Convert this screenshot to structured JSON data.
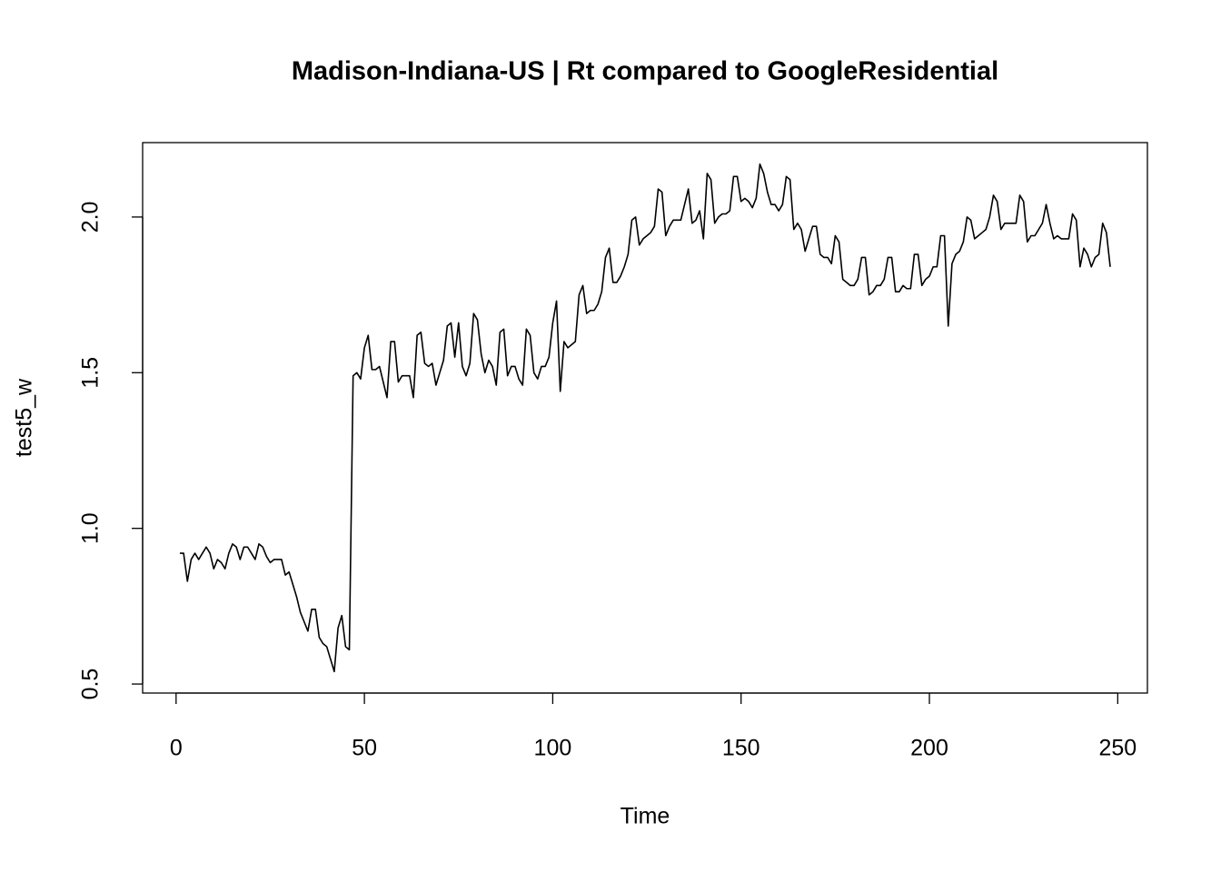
{
  "chart_data": {
    "type": "line",
    "title": "Madison-Indiana-US | Rt compared to GoogleResidential",
    "x_label": "Time",
    "y_label": "test5_w",
    "color": "#000000",
    "xlim": [
      -8.88,
      257.88
    ],
    "ylim": [
      0.471,
      2.239
    ],
    "xticks": [
      0,
      50,
      100,
      150,
      200,
      250
    ],
    "yticks": [
      0.5,
      {
        "value": 1,
        "label": "1.0"
      },
      1.5,
      {
        "value": 2,
        "label": "2.0"
      }
    ],
    "x": [
      1,
      2,
      3,
      4,
      5,
      6,
      7,
      8,
      9,
      10,
      11,
      12,
      13,
      14,
      15,
      16,
      17,
      18,
      19,
      20,
      21,
      22,
      23,
      24,
      25,
      26,
      27,
      28,
      29,
      30,
      31,
      32,
      33,
      34,
      35,
      36,
      37,
      38,
      39,
      40,
      41,
      42,
      43,
      44,
      45,
      46,
      47,
      48,
      49,
      50,
      51,
      52,
      53,
      54,
      55,
      56,
      57,
      58,
      59,
      60,
      61,
      62,
      63,
      64,
      65,
      66,
      67,
      68,
      69,
      70,
      71,
      72,
      73,
      74,
      75,
      76,
      77,
      78,
      79,
      80,
      81,
      82,
      83,
      84,
      85,
      86,
      87,
      88,
      89,
      90,
      91,
      92,
      93,
      94,
      95,
      96,
      97,
      98,
      99,
      100,
      101,
      102,
      103,
      104,
      105,
      106,
      107,
      108,
      109,
      110,
      111,
      112,
      113,
      114,
      115,
      116,
      117,
      118,
      119,
      120,
      121,
      122,
      123,
      124,
      125,
      126,
      127,
      128,
      129,
      130,
      131,
      132,
      133,
      134,
      135,
      136,
      137,
      138,
      139,
      140,
      141,
      142,
      143,
      144,
      145,
      146,
      147,
      148,
      149,
      150,
      151,
      152,
      153,
      154,
      155,
      156,
      157,
      158,
      159,
      160,
      161,
      162,
      163,
      164,
      165,
      166,
      167,
      168,
      169,
      170,
      171,
      172,
      173,
      174,
      175,
      176,
      177,
      178,
      179,
      180,
      181,
      182,
      183,
      184,
      185,
      186,
      187,
      188,
      189,
      190,
      191,
      192,
      193,
      194,
      195,
      196,
      197,
      198,
      199,
      200,
      201,
      202,
      203,
      204,
      205,
      206,
      207,
      208,
      209,
      210,
      211,
      212,
      213,
      214,
      215,
      216,
      217,
      218,
      219,
      220,
      221,
      222,
      223,
      224,
      225,
      226,
      227,
      228,
      229,
      230,
      231,
      232,
      233,
      234,
      235,
      236,
      237,
      238,
      239,
      240,
      241,
      242,
      243,
      244,
      245,
      246,
      247,
      248
    ],
    "values": [
      0.92,
      0.92,
      0.83,
      0.9,
      0.92,
      0.9,
      0.92,
      0.94,
      0.92,
      0.87,
      0.9,
      0.89,
      0.87,
      0.92,
      0.95,
      0.94,
      0.9,
      0.94,
      0.94,
      0.92,
      0.9,
      0.95,
      0.94,
      0.91,
      0.89,
      0.9,
      0.9,
      0.9,
      0.85,
      0.86,
      0.82,
      0.78,
      0.73,
      0.7,
      0.67,
      0.74,
      0.74,
      0.65,
      0.63,
      0.62,
      0.58,
      0.54,
      0.68,
      0.72,
      0.62,
      0.61,
      1.49,
      1.5,
      1.48,
      1.58,
      1.62,
      1.51,
      1.51,
      1.52,
      1.47,
      1.42,
      1.6,
      1.6,
      1.47,
      1.49,
      1.49,
      1.49,
      1.42,
      1.62,
      1.63,
      1.53,
      1.52,
      1.53,
      1.46,
      1.5,
      1.54,
      1.65,
      1.66,
      1.55,
      1.66,
      1.52,
      1.49,
      1.53,
      1.69,
      1.67,
      1.56,
      1.5,
      1.54,
      1.52,
      1.46,
      1.63,
      1.64,
      1.49,
      1.52,
      1.52,
      1.48,
      1.46,
      1.64,
      1.62,
      1.5,
      1.48,
      1.52,
      1.52,
      1.55,
      1.66,
      1.73,
      1.44,
      1.6,
      1.58,
      1.59,
      1.6,
      1.75,
      1.78,
      1.69,
      1.7,
      1.7,
      1.72,
      1.76,
      1.87,
      1.9,
      1.79,
      1.79,
      1.81,
      1.84,
      1.88,
      1.99,
      2.0,
      1.91,
      1.93,
      1.94,
      1.95,
      1.97,
      2.09,
      2.08,
      1.94,
      1.97,
      1.99,
      1.99,
      1.99,
      2.04,
      2.09,
      1.98,
      1.99,
      2.02,
      1.93,
      2.14,
      2.12,
      1.98,
      2.0,
      2.01,
      2.01,
      2.02,
      2.13,
      2.13,
      2.05,
      2.06,
      2.05,
      2.03,
      2.06,
      2.17,
      2.14,
      2.08,
      2.04,
      2.04,
      2.02,
      2.04,
      2.13,
      2.12,
      1.96,
      1.98,
      1.96,
      1.89,
      1.93,
      1.97,
      1.97,
      1.88,
      1.87,
      1.87,
      1.85,
      1.94,
      1.92,
      1.8,
      1.79,
      1.78,
      1.78,
      1.8,
      1.87,
      1.87,
      1.75,
      1.76,
      1.78,
      1.78,
      1.8,
      1.87,
      1.87,
      1.76,
      1.76,
      1.78,
      1.77,
      1.77,
      1.88,
      1.88,
      1.78,
      1.8,
      1.81,
      1.84,
      1.84,
      1.94,
      1.94,
      1.65,
      1.85,
      1.88,
      1.89,
      1.92,
      2.0,
      1.99,
      1.93,
      1.94,
      1.95,
      1.96,
      2.0,
      2.07,
      2.05,
      1.96,
      1.98,
      1.98,
      1.98,
      1.98,
      2.07,
      2.05,
      1.92,
      1.94,
      1.94,
      1.96,
      1.98,
      2.04,
      1.98,
      1.93,
      1.94,
      1.93,
      1.93,
      1.93,
      2.01,
      1.99,
      1.84,
      1.9,
      1.88,
      1.84,
      1.87,
      1.88,
      1.98,
      1.95,
      1.84
    ]
  }
}
